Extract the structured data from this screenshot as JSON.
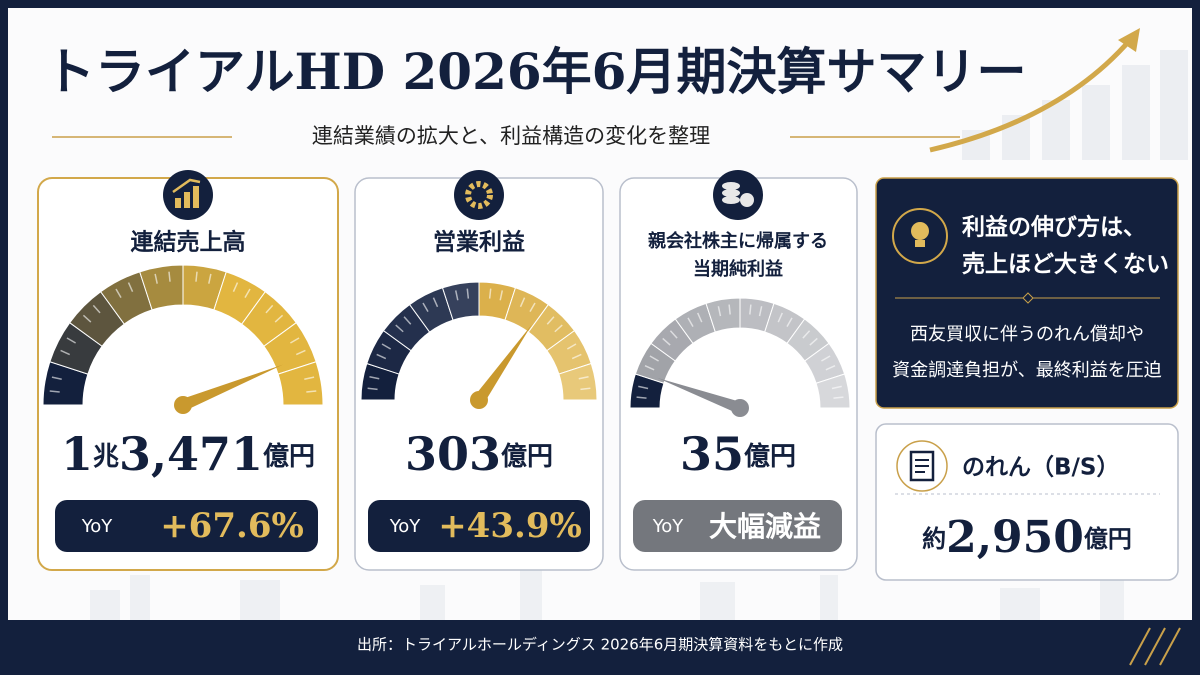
{
  "header": {
    "title": "トライアルHD 2026年6月期決算サマリー",
    "subtitle": "連結業績の拡大と、利益構造の変化を整理"
  },
  "cards": [
    {
      "label_lines": [
        "連結売上高"
      ],
      "value_parts": [
        "1",
        "兆",
        "3,471",
        "億円"
      ],
      "yoy_label": "YoY",
      "yoy": "+67.6%"
    },
    {
      "label_lines": [
        "営業利益"
      ],
      "value_parts": [
        "303",
        "億円"
      ],
      "yoy_label": "YoY",
      "yoy": "+43.9%"
    },
    {
      "label_lines": [
        "親会社株主に帰属する",
        "当期純利益"
      ],
      "value_parts": [
        "35",
        "億円"
      ],
      "yoy_label": "YoY",
      "yoy": "大幅減益"
    }
  ],
  "insight": {
    "heading_lines": [
      "利益の伸び方は、",
      "売上ほど大きくない"
    ],
    "body_lines": [
      "西友買収に伴うのれん償却や",
      "資金調達負担が、最終利益を圧迫"
    ]
  },
  "goodwill": {
    "label": "のれん（B/S）",
    "value_parts": [
      "約",
      "2,950",
      "億円"
    ]
  },
  "footer": {
    "source": "出所：トライアルホールディングス 2026年6月期決算資料をもとに作成"
  }
}
